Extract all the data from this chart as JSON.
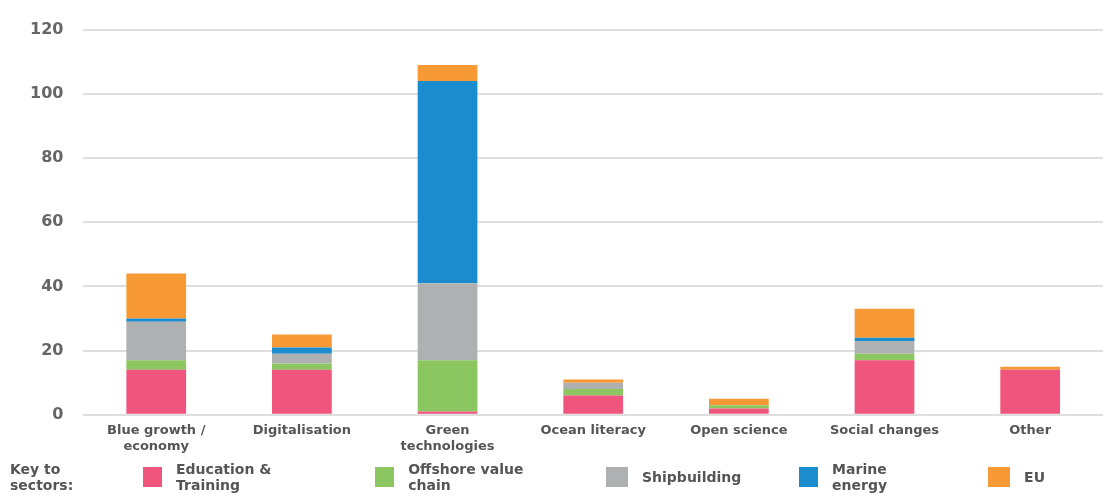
{
  "chart_data": {
    "type": "bar",
    "stacked": true,
    "categories": [
      "Blue growth / economy",
      "Digitalisation",
      "Green technologies",
      "Ocean literacy",
      "Open science",
      "Social changes",
      "Other"
    ],
    "series": [
      {
        "name": "Education & Training",
        "color": "#ef557d",
        "values": [
          14,
          14,
          1,
          6,
          2,
          17,
          14
        ]
      },
      {
        "name": "Offshore value chain",
        "color": "#8cc660",
        "values": [
          3,
          2,
          16,
          2,
          1,
          2,
          0
        ]
      },
      {
        "name": "Shipbuilding",
        "color": "#aeb0b1",
        "values": [
          12,
          3,
          24,
          2,
          0,
          4,
          0
        ]
      },
      {
        "name": "Marine energy",
        "color": "#1b8ccd",
        "values": [
          1,
          2,
          63,
          0,
          0,
          1,
          0
        ]
      },
      {
        "name": "EU",
        "color": "#f79a36",
        "values": [
          14,
          4,
          5,
          1,
          2,
          9,
          1
        ]
      }
    ],
    "ylim": [
      0,
      120
    ],
    "yticks": [
      0,
      20,
      40,
      60,
      80,
      100,
      120
    ],
    "grid": "y",
    "legend": "bottom",
    "legend_title": "Key to sectors:"
  }
}
